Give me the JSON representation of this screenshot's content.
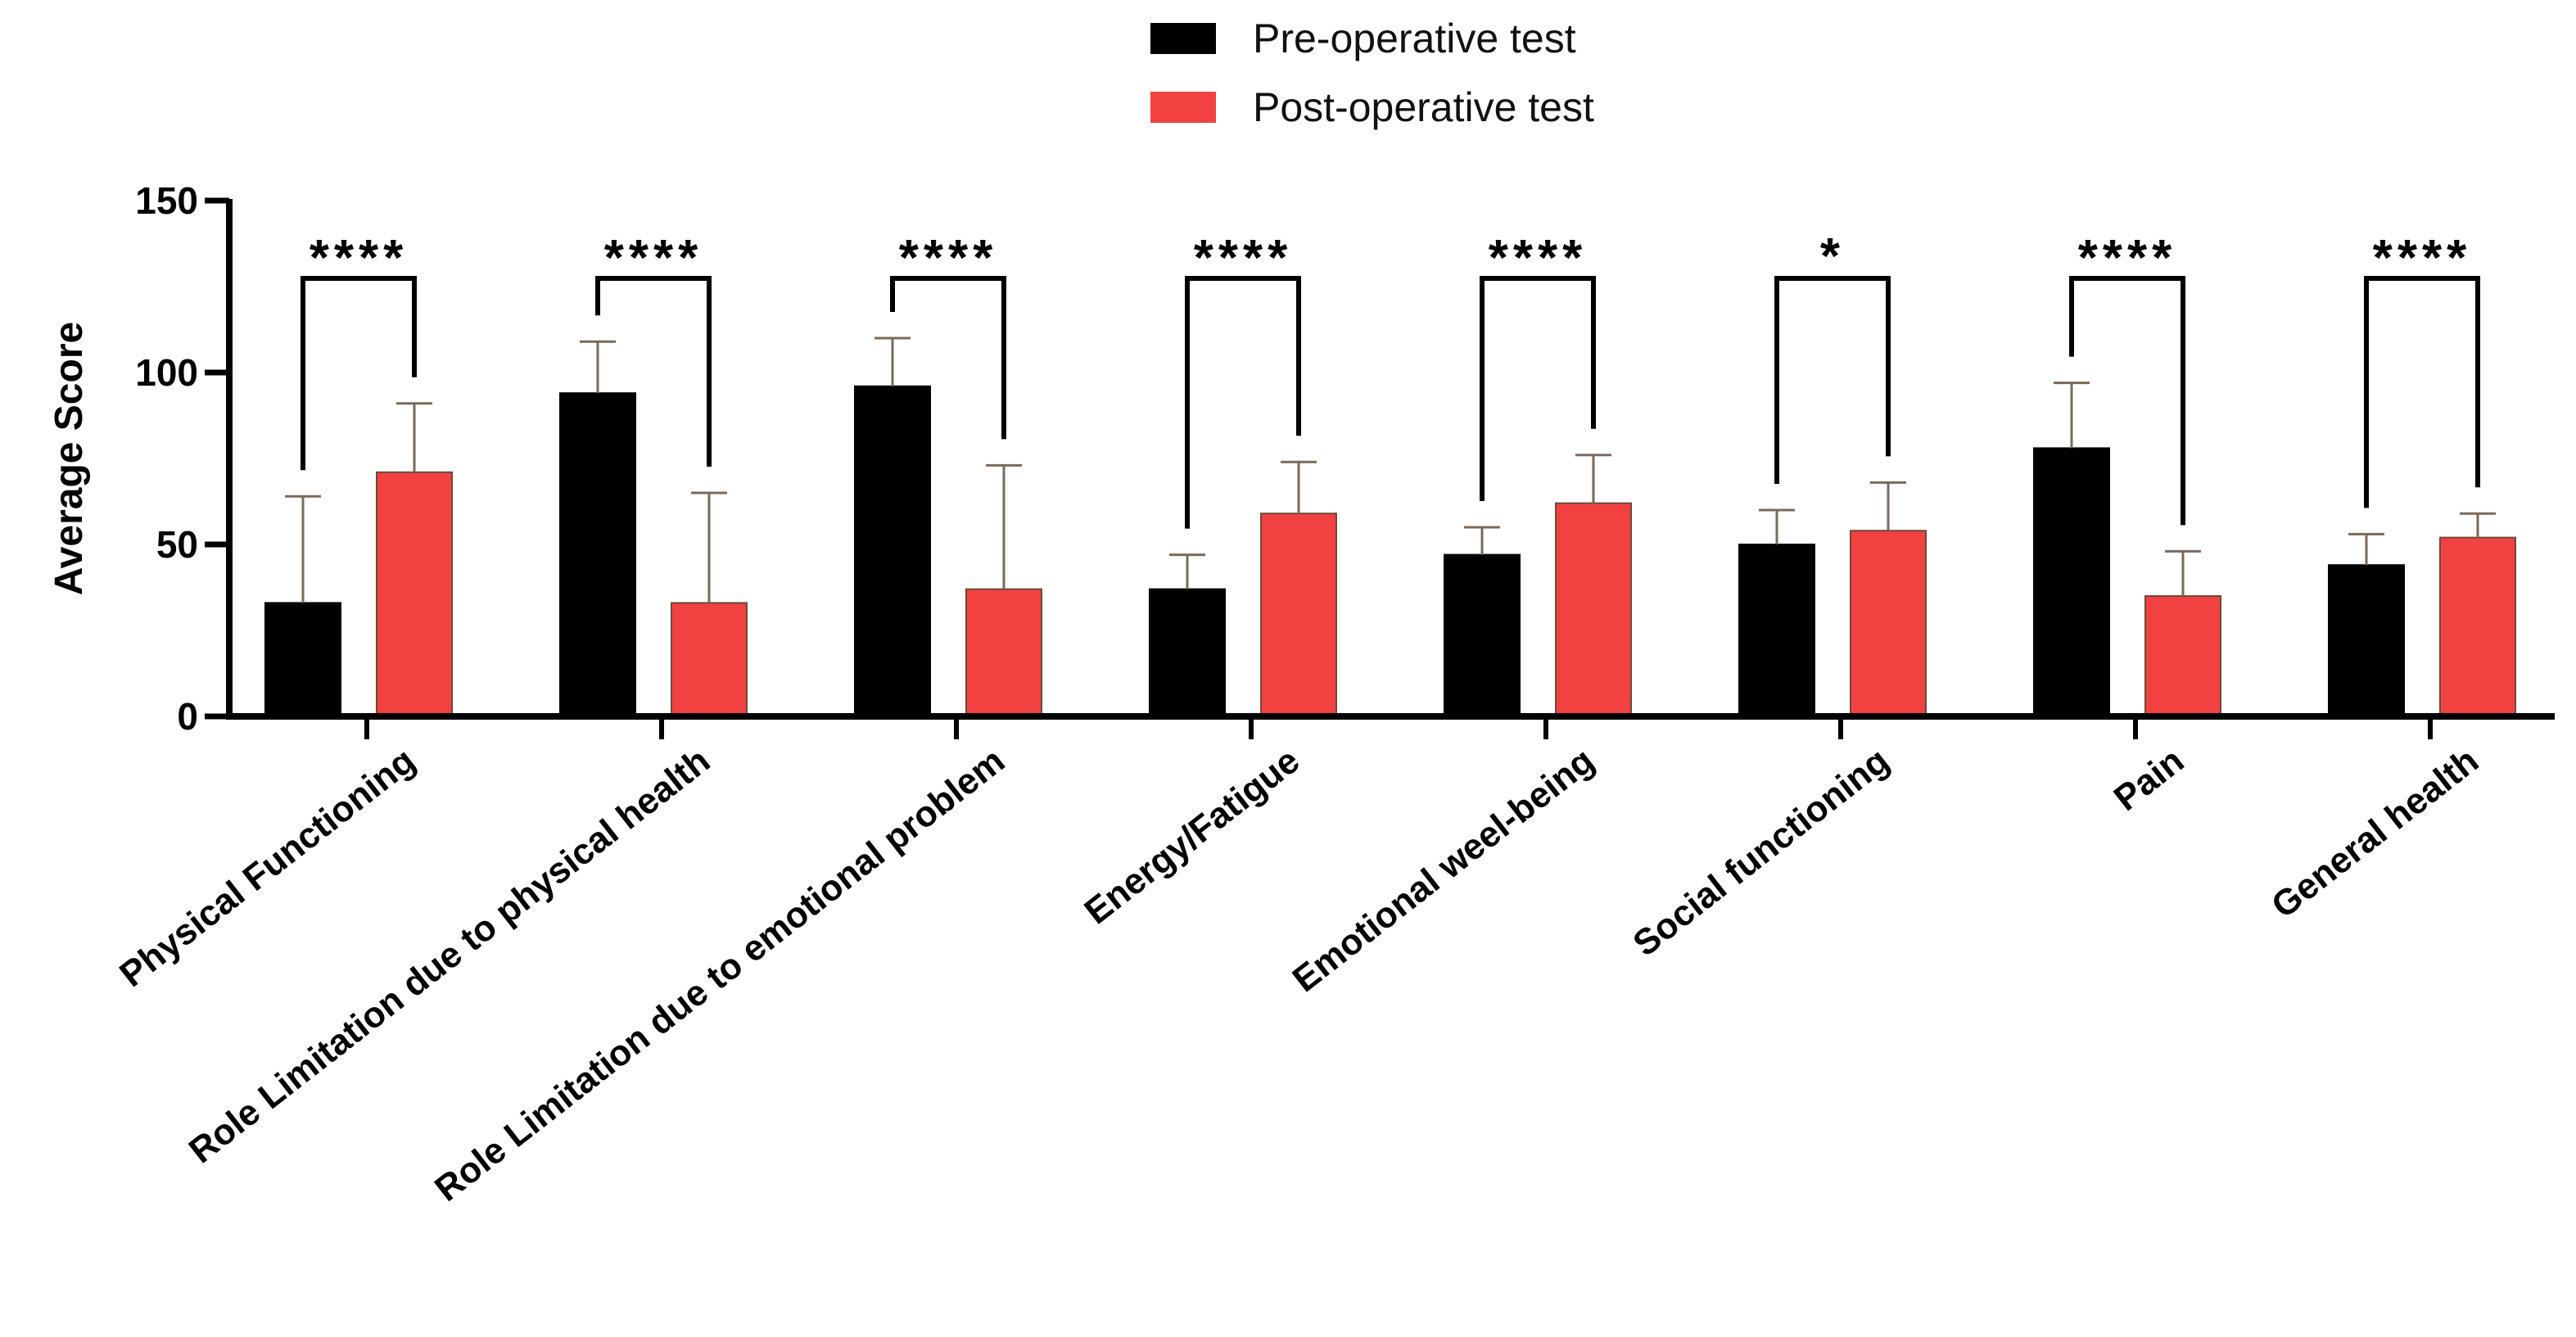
{
  "chart_data": {
    "type": "bar",
    "title": "",
    "xlabel": "",
    "ylabel": "Average Score",
    "ylim": [
      0,
      150
    ],
    "yticks": [
      0,
      50,
      100,
      150
    ],
    "legend_position": "top-center",
    "colors": {
      "pre": "#000000",
      "post": "#f24141",
      "error": "#7a6a5a",
      "axis": "#000000"
    },
    "categories": [
      "Physical Functioning",
      "Role Limitation due to physical health",
      "Role Limitation due to emotional problem",
      "Energy/Fatigue",
      "Emotional weel-being",
      "Social functioning",
      "Pain",
      "General health"
    ],
    "series": [
      {
        "name": "Pre-operative test",
        "values": [
          33,
          94,
          96,
          37,
          47,
          50,
          78,
          44
        ],
        "error_upper": [
          31,
          15,
          14,
          10,
          8,
          10,
          19,
          9
        ]
      },
      {
        "name": "Post-operative test",
        "values": [
          71,
          33,
          37,
          59,
          62,
          54,
          35,
          52
        ],
        "error_upper": [
          20,
          32,
          36,
          15,
          14,
          14,
          13,
          7
        ]
      }
    ],
    "significance": [
      "****",
      "****",
      "****",
      "****",
      "****",
      "*",
      "****",
      "****"
    ]
  }
}
